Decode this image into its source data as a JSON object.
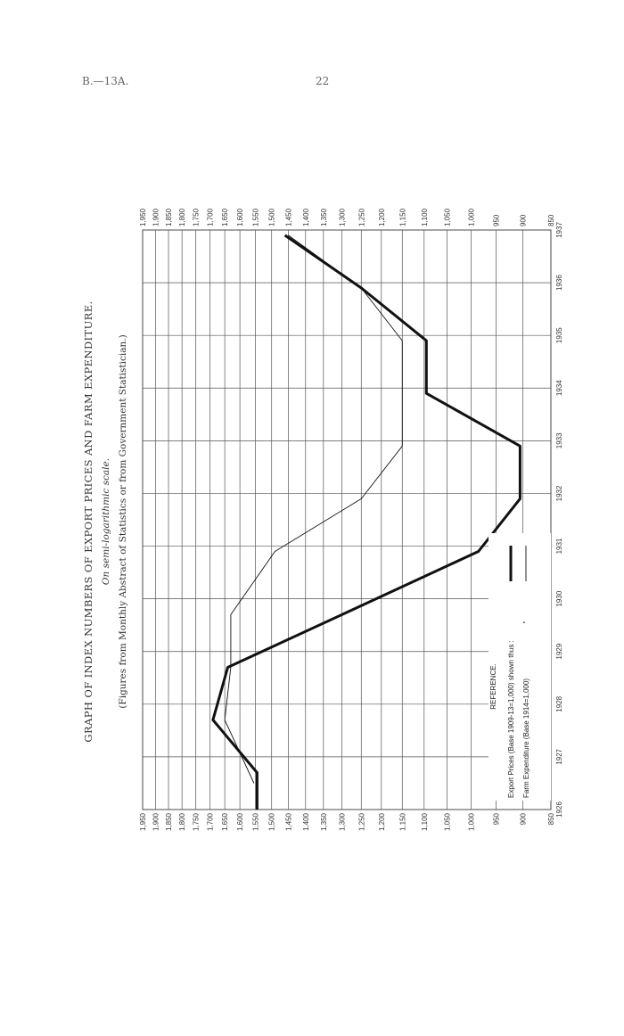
{
  "header": {
    "ref": "B.—13A.",
    "page": "22"
  },
  "chart_data": {
    "type": "line",
    "title": "GRAPH OF INDEX NUMBERS OF EXPORT PRICES AND FARM EXPENDITURE.",
    "subtitle": "On semi-logarithmic scale.",
    "source_note": "(Figures from Monthly Abstract of Statistics or from Government Statistician.)",
    "x": [
      1926,
      1927,
      1928,
      1929,
      1930,
      1931,
      1932,
      1933,
      1934,
      1935,
      1936,
      1937
    ],
    "x_ticks": [
      "1926",
      "1927",
      "1928",
      "1929",
      "1930",
      "1931",
      "1932",
      "1933",
      "1934",
      "1935",
      "1936",
      "1937"
    ],
    "y_ticks": [
      "850",
      "900",
      "950",
      "1,000",
      "1,050",
      "1,100",
      "1,150",
      "1,200",
      "1,250",
      "1,300",
      "1,350",
      "1,400",
      "1,450",
      "1,500",
      "1,550",
      "1,600",
      "1,650",
      "1,700",
      "1,750",
      "1,800",
      "1,850",
      "1,900",
      "1,950"
    ],
    "ylim": [
      850,
      1950
    ],
    "scale": "log",
    "grid": true,
    "series": [
      {
        "name": "Export Prices (Base 1909-13=1,000)",
        "style": "thick",
        "points": [
          [
            1926,
            1545
          ],
          [
            1926.7,
            1545
          ],
          [
            1927.7,
            1690
          ],
          [
            1928.7,
            1640
          ],
          [
            1929.7,
            1300
          ],
          [
            1930.9,
            985
          ],
          [
            1931.9,
            905
          ],
          [
            1932.9,
            905
          ],
          [
            1933.9,
            1095
          ],
          [
            1934.9,
            1095
          ],
          [
            1935.9,
            1250
          ],
          [
            1936.9,
            1460
          ]
        ]
      },
      {
        "name": "Farm Expenditure (Base 1914=1,000)",
        "style": "thin",
        "points": [
          [
            1926.5,
            1555
          ],
          [
            1927.7,
            1650
          ],
          [
            1928.7,
            1630
          ],
          [
            1929.7,
            1630
          ],
          [
            1930.9,
            1490
          ],
          [
            1931.9,
            1250
          ],
          [
            1932.9,
            1150
          ],
          [
            1934.9,
            1150
          ],
          [
            1935.9,
            1250
          ],
          [
            1936.9,
            1450
          ]
        ]
      }
    ],
    "legend": {
      "heading": "REFERENCE.",
      "export_label": "Export Prices (Base 1909-13=1,000)  shown thus :",
      "farm_label": "Farm Expenditure (Base 1914=1,000)",
      "ditto": "\"",
      "placement": "bottom-left"
    }
  }
}
